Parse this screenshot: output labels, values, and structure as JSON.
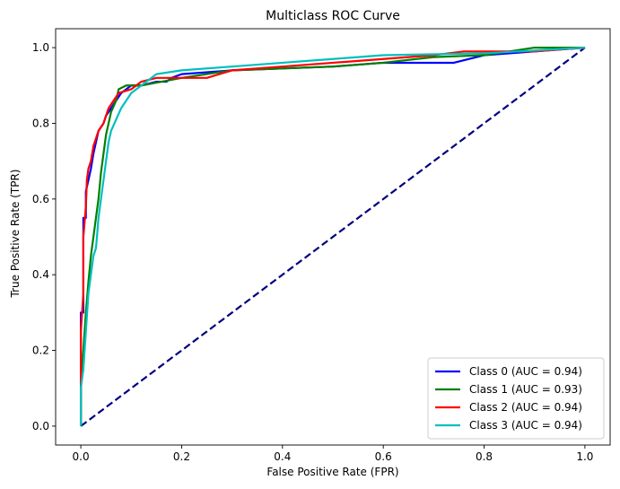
{
  "chart_data": {
    "type": "line",
    "title": "Multiclass ROC Curve",
    "xlabel": "False Positive Rate (FPR)",
    "ylabel": "True Positive Rate (TPR)",
    "xlim": [
      -0.05,
      1.05
    ],
    "ylim": [
      -0.05,
      1.05
    ],
    "x_ticks": [
      "0.0",
      "0.2",
      "0.4",
      "0.6",
      "0.8",
      "1.0"
    ],
    "y_ticks": [
      "0.0",
      "0.2",
      "0.4",
      "0.6",
      "0.8",
      "1.0"
    ],
    "grid": false,
    "legend_position": "lower-right",
    "diagonal": {
      "color": "#000080",
      "style": "dashed",
      "points": [
        [
          0,
          0
        ],
        [
          1,
          1
        ]
      ]
    },
    "series": [
      {
        "name": "Class 0 (AUC = 0.94)",
        "color": "#0000ff",
        "points": [
          [
            0,
            0
          ],
          [
            0,
            0.3
          ],
          [
            0.005,
            0.3
          ],
          [
            0.005,
            0.55
          ],
          [
            0.01,
            0.55
          ],
          [
            0.01,
            0.62
          ],
          [
            0.015,
            0.65
          ],
          [
            0.02,
            0.68
          ],
          [
            0.025,
            0.72
          ],
          [
            0.03,
            0.75
          ],
          [
            0.035,
            0.78
          ],
          [
            0.045,
            0.8
          ],
          [
            0.05,
            0.82
          ],
          [
            0.06,
            0.84
          ],
          [
            0.07,
            0.86
          ],
          [
            0.08,
            0.88
          ],
          [
            0.1,
            0.9
          ],
          [
            0.12,
            0.9
          ],
          [
            0.15,
            0.91
          ],
          [
            0.17,
            0.91
          ],
          [
            0.18,
            0.92
          ],
          [
            0.2,
            0.93
          ],
          [
            0.3,
            0.94
          ],
          [
            0.5,
            0.95
          ],
          [
            0.6,
            0.96
          ],
          [
            0.74,
            0.96
          ],
          [
            0.8,
            0.98
          ],
          [
            1,
            1
          ]
        ]
      },
      {
        "name": "Class 1 (AUC = 0.93)",
        "color": "#008000",
        "points": [
          [
            0,
            0
          ],
          [
            0,
            0.1
          ],
          [
            0.005,
            0.2
          ],
          [
            0.01,
            0.3
          ],
          [
            0.015,
            0.38
          ],
          [
            0.02,
            0.45
          ],
          [
            0.025,
            0.5
          ],
          [
            0.03,
            0.55
          ],
          [
            0.035,
            0.6
          ],
          [
            0.04,
            0.67
          ],
          [
            0.045,
            0.72
          ],
          [
            0.05,
            0.77
          ],
          [
            0.055,
            0.8
          ],
          [
            0.06,
            0.83
          ],
          [
            0.07,
            0.86
          ],
          [
            0.075,
            0.89
          ],
          [
            0.09,
            0.9
          ],
          [
            0.12,
            0.9
          ],
          [
            0.2,
            0.92
          ],
          [
            0.3,
            0.94
          ],
          [
            0.5,
            0.95
          ],
          [
            0.6,
            0.96
          ],
          [
            0.7,
            0.975
          ],
          [
            0.8,
            0.98
          ],
          [
            0.9,
            1
          ],
          [
            1,
            1
          ]
        ]
      },
      {
        "name": "Class 2 (AUC = 0.94)",
        "color": "#ff0000",
        "points": [
          [
            0,
            0
          ],
          [
            0,
            0.25
          ],
          [
            0.005,
            0.35
          ],
          [
            0.005,
            0.5
          ],
          [
            0.01,
            0.58
          ],
          [
            0.012,
            0.65
          ],
          [
            0.015,
            0.68
          ],
          [
            0.02,
            0.7
          ],
          [
            0.025,
            0.74
          ],
          [
            0.03,
            0.76
          ],
          [
            0.035,
            0.78
          ],
          [
            0.045,
            0.8
          ],
          [
            0.055,
            0.84
          ],
          [
            0.065,
            0.86
          ],
          [
            0.075,
            0.88
          ],
          [
            0.1,
            0.89
          ],
          [
            0.12,
            0.91
          ],
          [
            0.15,
            0.92
          ],
          [
            0.25,
            0.92
          ],
          [
            0.3,
            0.94
          ],
          [
            0.4,
            0.95
          ],
          [
            0.5,
            0.96
          ],
          [
            0.6,
            0.97
          ],
          [
            0.7,
            0.98
          ],
          [
            0.76,
            0.99
          ],
          [
            0.9,
            0.99
          ],
          [
            1,
            1
          ]
        ]
      },
      {
        "name": "Class 3 (AUC = 0.94)",
        "color": "#00bfbf",
        "points": [
          [
            0,
            0
          ],
          [
            0,
            0.1
          ],
          [
            0.005,
            0.15
          ],
          [
            0.01,
            0.25
          ],
          [
            0.015,
            0.35
          ],
          [
            0.02,
            0.4
          ],
          [
            0.025,
            0.45
          ],
          [
            0.03,
            0.47
          ],
          [
            0.032,
            0.5
          ],
          [
            0.035,
            0.55
          ],
          [
            0.04,
            0.6
          ],
          [
            0.045,
            0.65
          ],
          [
            0.05,
            0.7
          ],
          [
            0.055,
            0.75
          ],
          [
            0.06,
            0.78
          ],
          [
            0.07,
            0.81
          ],
          [
            0.08,
            0.84
          ],
          [
            0.09,
            0.86
          ],
          [
            0.1,
            0.88
          ],
          [
            0.12,
            0.9
          ],
          [
            0.15,
            0.93
          ],
          [
            0.2,
            0.94
          ],
          [
            0.3,
            0.95
          ],
          [
            0.4,
            0.96
          ],
          [
            0.5,
            0.97
          ],
          [
            0.6,
            0.98
          ],
          [
            0.8,
            0.985
          ],
          [
            1,
            1
          ]
        ]
      }
    ]
  }
}
